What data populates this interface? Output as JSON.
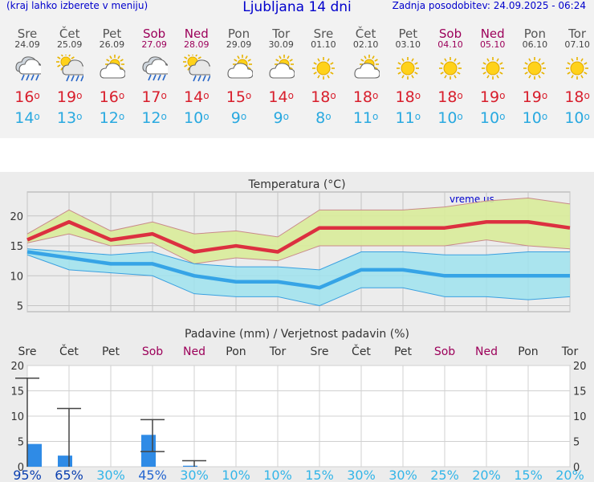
{
  "header": {
    "menu_hint": "(kraj lahko izberete v meniju)",
    "title": "Ljubljana 14 dni",
    "updated": "Zadnja posodobitev: 24.09.2025 - 06:24"
  },
  "days": [
    {
      "name": "Sre",
      "date": "24.09",
      "weekend": false,
      "icon": "rain-cloud-icon",
      "tmax": "16",
      "tmin": "14"
    },
    {
      "name": "Čet",
      "date": "25.09",
      "weekend": false,
      "icon": "sun-rain-cloud-icon",
      "tmax": "19",
      "tmin": "13"
    },
    {
      "name": "Pet",
      "date": "26.09",
      "weekend": false,
      "icon": "sun-cloud-icon",
      "tmax": "16",
      "tmin": "12"
    },
    {
      "name": "Sob",
      "date": "27.09",
      "weekend": true,
      "icon": "rain-cloud-icon",
      "tmax": "17",
      "tmin": "12"
    },
    {
      "name": "Ned",
      "date": "28.09",
      "weekend": true,
      "icon": "sun-rain-cloud-icon",
      "tmax": "14",
      "tmin": "10"
    },
    {
      "name": "Pon",
      "date": "29.09",
      "weekend": false,
      "icon": "sun-cloud-icon",
      "tmax": "15",
      "tmin": "9"
    },
    {
      "name": "Tor",
      "date": "30.09",
      "weekend": false,
      "icon": "sun-cloud-icon",
      "tmax": "14",
      "tmin": "9"
    },
    {
      "name": "Sre",
      "date": "01.10",
      "weekend": false,
      "icon": "sun-icon",
      "tmax": "18",
      "tmin": "8"
    },
    {
      "name": "Čet",
      "date": "02.10",
      "weekend": false,
      "icon": "sun-cloud-icon",
      "tmax": "18",
      "tmin": "11"
    },
    {
      "name": "Pet",
      "date": "03.10",
      "weekend": false,
      "icon": "sun-icon",
      "tmax": "18",
      "tmin": "11"
    },
    {
      "name": "Sob",
      "date": "04.10",
      "weekend": true,
      "icon": "sun-icon",
      "tmax": "18",
      "tmin": "10"
    },
    {
      "name": "Ned",
      "date": "05.10",
      "weekend": true,
      "icon": "sun-icon",
      "tmax": "19",
      "tmin": "10"
    },
    {
      "name": "Pon",
      "date": "06.10",
      "weekend": false,
      "icon": "sun-icon",
      "tmax": "19",
      "tmin": "10"
    },
    {
      "name": "Tor",
      "date": "07.10",
      "weekend": false,
      "icon": "sun-icon",
      "tmax": "18",
      "tmin": "10"
    }
  ],
  "colors": {
    "link_blue": "#0000cc",
    "weekend": "#9c005a",
    "tmax": "#d81e2c",
    "tmin": "#29a9e0",
    "max_band": "#d9ec9a",
    "min_band": "#9fe3ef",
    "max_line": "#dc3040",
    "min_line": "#36a4e6",
    "precip_bar": "#2f8be6"
  },
  "chart_data": [
    {
      "type": "line",
      "title": "Temperatura (°C)",
      "watermark": "vreme.us",
      "categories": [
        "24.09",
        "25.09",
        "26.09",
        "27.09",
        "28.09",
        "29.09",
        "30.09",
        "01.10",
        "02.10",
        "03.10",
        "04.10",
        "05.10",
        "06.10",
        "07.10"
      ],
      "ylim": [
        4,
        24
      ],
      "yticks": [
        5,
        10,
        15,
        20
      ],
      "grid": true,
      "series": [
        {
          "values": [
            16,
            19,
            16,
            17,
            14,
            15,
            14,
            18,
            18,
            18,
            18,
            19,
            19,
            18
          ],
          "band_high": [
            17,
            21,
            17.5,
            19,
            17,
            17.5,
            16.5,
            21,
            21,
            21,
            21.5,
            22.5,
            23,
            22
          ],
          "band_low": [
            15.5,
            17,
            15,
            15.5,
            12,
            13,
            12.5,
            15,
            15,
            15,
            15,
            16,
            15,
            14.5
          ]
        },
        {
          "values": [
            14,
            13,
            12,
            12,
            10,
            9,
            9,
            8,
            11,
            11,
            10,
            10,
            10,
            10
          ],
          "band_high": [
            14.5,
            14,
            13.5,
            14,
            12,
            11.5,
            11.5,
            11,
            14,
            14,
            13.5,
            13.5,
            14,
            14
          ],
          "band_low": [
            13.5,
            11,
            10.5,
            10,
            7,
            6.5,
            6.5,
            5,
            8,
            8,
            6.5,
            6.5,
            6,
            6.5
          ]
        }
      ]
    },
    {
      "type": "bar",
      "title": "Padavine (mm) / Verjetnost padavin (%)",
      "categories": [
        "Sre",
        "Čet",
        "Pet",
        "Sob",
        "Ned",
        "Pon",
        "Tor",
        "Sre",
        "Čet",
        "Pet",
        "Sob",
        "Ned",
        "Pon",
        "Tor"
      ],
      "ylim": [
        0,
        20
      ],
      "yticks": [
        0,
        5,
        10,
        15,
        20
      ],
      "values": [
        4.5,
        2.2,
        0,
        6.3,
        0.2,
        0,
        0,
        0,
        0,
        0,
        0,
        0,
        0,
        0
      ],
      "range_high": [
        17.5,
        11.5,
        null,
        9.3,
        1.2,
        null,
        null,
        null,
        null,
        null,
        null,
        null,
        null,
        null
      ],
      "range_low": [
        0,
        0,
        null,
        3,
        0,
        null,
        null,
        null,
        null,
        null,
        null,
        null,
        null,
        null
      ],
      "probability": [
        "95%",
        "65%",
        "30%",
        "45%",
        "30%",
        "10%",
        "10%",
        "15%",
        "30%",
        "30%",
        "25%",
        "20%",
        "15%",
        "20%"
      ]
    }
  ]
}
